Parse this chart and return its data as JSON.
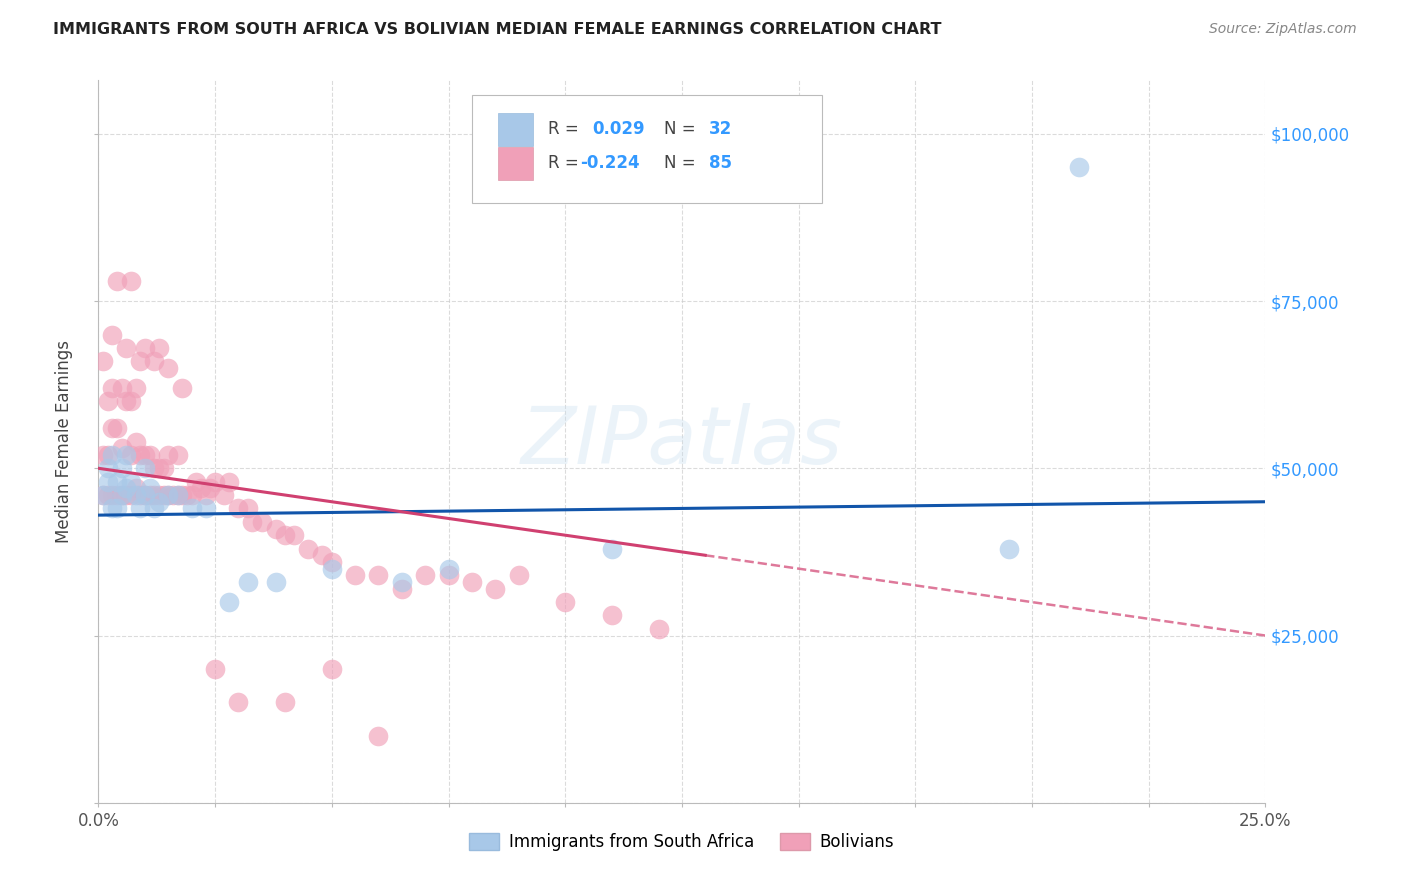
{
  "title": "IMMIGRANTS FROM SOUTH AFRICA VS BOLIVIAN MEDIAN FEMALE EARNINGS CORRELATION CHART",
  "source": "Source: ZipAtlas.com",
  "ylabel": "Median Female Earnings",
  "y_ticks": [
    0,
    25000,
    50000,
    75000,
    100000
  ],
  "y_tick_labels": [
    "",
    "$25,000",
    "$50,000",
    "$75,000",
    "$100,000"
  ],
  "x_range": [
    0,
    0.25
  ],
  "y_range": [
    0,
    108000
  ],
  "legend_label1": "Immigrants from South Africa",
  "legend_label2": "Bolivians",
  "blue_color": "#a8c8e8",
  "pink_color": "#f0a0b8",
  "trend_blue": "#1155aa",
  "trend_pink": "#d04070",
  "watermark": "ZIPatlas",
  "blue_x": [
    0.001,
    0.002,
    0.002,
    0.003,
    0.003,
    0.004,
    0.004,
    0.005,
    0.005,
    0.006,
    0.006,
    0.007,
    0.008,
    0.009,
    0.01,
    0.01,
    0.011,
    0.012,
    0.013,
    0.015,
    0.017,
    0.02,
    0.023,
    0.028,
    0.032,
    0.038,
    0.05,
    0.065,
    0.075,
    0.11,
    0.195,
    0.21
  ],
  "blue_y": [
    46000,
    50000,
    48000,
    52000,
    44000,
    48000,
    44000,
    50000,
    46000,
    52000,
    47000,
    48000,
    46000,
    44000,
    50000,
    46000,
    47000,
    44000,
    45000,
    46000,
    46000,
    44000,
    44000,
    30000,
    33000,
    33000,
    35000,
    33000,
    35000,
    38000,
    38000,
    95000
  ],
  "pink_x": [
    0.001,
    0.001,
    0.001,
    0.002,
    0.002,
    0.002,
    0.003,
    0.003,
    0.003,
    0.004,
    0.004,
    0.005,
    0.005,
    0.005,
    0.006,
    0.006,
    0.007,
    0.007,
    0.007,
    0.008,
    0.008,
    0.008,
    0.009,
    0.009,
    0.01,
    0.01,
    0.011,
    0.011,
    0.012,
    0.012,
    0.013,
    0.013,
    0.014,
    0.014,
    0.015,
    0.015,
    0.016,
    0.017,
    0.017,
    0.018,
    0.019,
    0.02,
    0.021,
    0.022,
    0.023,
    0.024,
    0.025,
    0.027,
    0.028,
    0.03,
    0.032,
    0.033,
    0.035,
    0.038,
    0.04,
    0.042,
    0.045,
    0.048,
    0.05,
    0.055,
    0.06,
    0.065,
    0.07,
    0.075,
    0.08,
    0.085,
    0.09,
    0.1,
    0.11,
    0.12,
    0.004,
    0.007,
    0.01,
    0.013,
    0.003,
    0.006,
    0.009,
    0.012,
    0.015,
    0.018,
    0.025,
    0.03,
    0.04,
    0.05,
    0.06
  ],
  "pink_y": [
    46000,
    52000,
    66000,
    46000,
    52000,
    60000,
    46000,
    56000,
    62000,
    46000,
    56000,
    46000,
    53000,
    62000,
    46000,
    60000,
    46000,
    52000,
    60000,
    47000,
    54000,
    62000,
    46000,
    52000,
    46000,
    52000,
    46000,
    52000,
    46000,
    50000,
    46000,
    50000,
    46000,
    50000,
    46000,
    52000,
    46000,
    46000,
    52000,
    46000,
    46000,
    46000,
    48000,
    47000,
    46000,
    47000,
    48000,
    46000,
    48000,
    44000,
    44000,
    42000,
    42000,
    41000,
    40000,
    40000,
    38000,
    37000,
    36000,
    34000,
    34000,
    32000,
    34000,
    34000,
    33000,
    32000,
    34000,
    30000,
    28000,
    26000,
    78000,
    78000,
    68000,
    68000,
    70000,
    68000,
    66000,
    66000,
    65000,
    62000,
    20000,
    15000,
    15000,
    20000,
    10000
  ]
}
